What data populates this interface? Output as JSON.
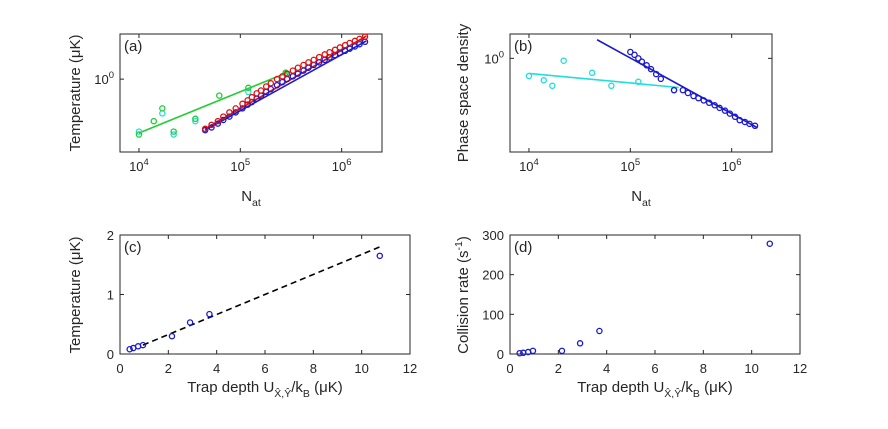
{
  "chart_data": [
    {
      "id": "a",
      "type": "scatter",
      "panel_label": "(a)",
      "xlabel": "N",
      "xlabel_sub": "at",
      "ylabel": "Temperature (μK)",
      "xscale": "log",
      "yscale": "log",
      "xlim": [
        6500,
        2500000
      ],
      "ylim": [
        0.28,
        2.2
      ],
      "xticks": [
        10000,
        100000,
        1000000
      ],
      "xticklabels": [
        {
          "base": "10",
          "exp": "4"
        },
        {
          "base": "10",
          "exp": "5"
        },
        {
          "base": "10",
          "exp": "6"
        }
      ],
      "yticks": [
        1
      ],
      "yticklabels": [
        {
          "base": "10",
          "exp": "0"
        }
      ],
      "series": [
        {
          "name": "cyan",
          "color": "#22dddd",
          "points": [
            [
              10000,
              0.4
            ],
            [
              17000,
              0.55
            ],
            [
              22000,
              0.38
            ],
            [
              36000,
              0.48
            ],
            [
              120000,
              0.8
            ],
            [
              280000,
              1.1
            ]
          ]
        },
        {
          "name": "green",
          "color": "#22cc33",
          "points": [
            [
              10000,
              0.38
            ],
            [
              14000,
              0.48
            ],
            [
              17000,
              0.6
            ],
            [
              22000,
              0.4
            ],
            [
              36000,
              0.5
            ],
            [
              62000,
              0.75
            ],
            [
              120000,
              0.86
            ],
            [
              280000,
              1.12
            ]
          ]
        },
        {
          "name": "blue",
          "color": "#1a1acc",
          "points": [
            [
              45000,
              0.41
            ],
            [
              52000,
              0.43
            ],
            [
              60000,
              0.46
            ],
            [
              68000,
              0.49
            ],
            [
              78000,
              0.52
            ],
            [
              90000,
              0.56
            ],
            [
              105000,
              0.6
            ],
            [
              118000,
              0.64
            ],
            [
              130000,
              0.67
            ],
            [
              145000,
              0.71
            ],
            [
              160000,
              0.75
            ],
            [
              180000,
              0.8
            ],
            [
              200000,
              0.84
            ],
            [
              230000,
              0.9
            ],
            [
              260000,
              0.95
            ],
            [
              290000,
              1.0
            ],
            [
              330000,
              1.05
            ],
            [
              370000,
              1.1
            ],
            [
              420000,
              1.16
            ],
            [
              470000,
              1.22
            ],
            [
              530000,
              1.28
            ],
            [
              600000,
              1.34
            ],
            [
              680000,
              1.4
            ],
            [
              760000,
              1.46
            ],
            [
              860000,
              1.52
            ],
            [
              960000,
              1.58
            ],
            [
              1080000,
              1.64
            ],
            [
              1200000,
              1.7
            ],
            [
              1350000,
              1.77
            ],
            [
              1500000,
              1.84
            ],
            [
              1700000,
              1.92
            ]
          ]
        },
        {
          "name": "red",
          "color": "#dd1111",
          "points": [
            [
              45000,
              0.42
            ],
            [
              52000,
              0.45
            ],
            [
              60000,
              0.48
            ],
            [
              68000,
              0.52
            ],
            [
              78000,
              0.56
            ],
            [
              90000,
              0.6
            ],
            [
              105000,
              0.65
            ],
            [
              118000,
              0.69
            ],
            [
              130000,
              0.73
            ],
            [
              145000,
              0.78
            ],
            [
              160000,
              0.82
            ],
            [
              180000,
              0.88
            ],
            [
              200000,
              0.93
            ],
            [
              230000,
              1.0
            ],
            [
              260000,
              1.05
            ],
            [
              290000,
              1.1
            ],
            [
              330000,
              1.16
            ],
            [
              370000,
              1.22
            ],
            [
              420000,
              1.28
            ],
            [
              470000,
              1.34
            ],
            [
              530000,
              1.4
            ],
            [
              600000,
              1.47
            ],
            [
              680000,
              1.54
            ],
            [
              760000,
              1.6
            ],
            [
              860000,
              1.67
            ],
            [
              960000,
              1.74
            ],
            [
              1080000,
              1.81
            ],
            [
              1200000,
              1.88
            ],
            [
              1350000,
              1.95
            ],
            [
              1500000,
              2.02
            ],
            [
              1700000,
              2.1
            ]
          ]
        }
      ],
      "fit_lines": [
        {
          "color": "#22cc33",
          "x": [
            10000,
            290000
          ],
          "y": [
            0.39,
            1.12
          ]
        },
        {
          "color": "#1a1acc",
          "x": [
            45000,
            1750000
          ],
          "y": [
            0.41,
            1.95
          ]
        },
        {
          "color": "#dd1111",
          "x": [
            45000,
            1750000
          ],
          "y": [
            0.42,
            2.12
          ]
        }
      ]
    },
    {
      "id": "b",
      "type": "scatter",
      "panel_label": "(b)",
      "xlabel": "N",
      "xlabel_sub": "at",
      "ylabel": "Phase space density",
      "xscale": "log",
      "yscale": "log",
      "xlim": [
        6500,
        2500000
      ],
      "ylim": [
        0.13,
        1.7
      ],
      "xticks": [
        10000,
        100000,
        1000000
      ],
      "xticklabels": [
        {
          "base": "10",
          "exp": "4"
        },
        {
          "base": "10",
          "exp": "5"
        },
        {
          "base": "10",
          "exp": "6"
        }
      ],
      "yticks": [
        1
      ],
      "yticklabels": [
        {
          "base": "10",
          "exp": "0"
        }
      ],
      "series": [
        {
          "name": "cyan",
          "color": "#22dddd",
          "points": [
            [
              10000,
              0.68
            ],
            [
              14000,
              0.62
            ],
            [
              17000,
              0.55
            ],
            [
              22000,
              0.95
            ],
            [
              42000,
              0.73
            ],
            [
              65000,
              0.55
            ],
            [
              120000,
              0.6
            ],
            [
              270000,
              0.5
            ]
          ]
        },
        {
          "name": "blue",
          "color": "#1a1acc",
          "points": [
            [
              100000,
              1.15
            ],
            [
              110000,
              1.08
            ],
            [
              120000,
              1.0
            ],
            [
              130000,
              0.93
            ],
            [
              145000,
              0.86
            ],
            [
              160000,
              0.79
            ],
            [
              180000,
              0.71
            ],
            [
              200000,
              0.64
            ],
            [
              270000,
              0.5
            ],
            [
              330000,
              0.5
            ],
            [
              370000,
              0.47
            ],
            [
              420000,
              0.44
            ],
            [
              470000,
              0.42
            ],
            [
              530000,
              0.4
            ],
            [
              600000,
              0.38
            ],
            [
              680000,
              0.36
            ],
            [
              760000,
              0.34
            ],
            [
              860000,
              0.32
            ],
            [
              960000,
              0.3
            ],
            [
              1080000,
              0.28
            ],
            [
              1200000,
              0.26
            ],
            [
              1350000,
              0.25
            ],
            [
              1500000,
              0.24
            ],
            [
              1700000,
              0.23
            ]
          ]
        }
      ],
      "fit_lines": [
        {
          "color": "#22dddd",
          "x": [
            10000,
            300000
          ],
          "y": [
            0.72,
            0.53
          ]
        },
        {
          "color": "#1a1acc",
          "x": [
            47000,
            1800000
          ],
          "y": [
            1.5,
            0.22
          ]
        }
      ]
    },
    {
      "id": "c",
      "type": "scatter",
      "panel_label": "(c)",
      "xlabel": "Trap depth U",
      "xlabel_sub": "X̂,Ŷ",
      "xlabel_tail": "/k",
      "xlabel_tail_sub": "B",
      "xlabel_unit": " (μK)",
      "ylabel": "Temperature (μK)",
      "xscale": "linear",
      "yscale": "linear",
      "xlim": [
        0,
        12
      ],
      "ylim": [
        0,
        2
      ],
      "xticks": [
        0,
        2,
        4,
        6,
        8,
        10,
        12
      ],
      "xticklabels": [
        "0",
        "2",
        "4",
        "6",
        "8",
        "10",
        "12"
      ],
      "yticks": [
        0,
        1,
        2
      ],
      "yticklabels": [
        "0",
        "1",
        "2"
      ],
      "series": [
        {
          "name": "data",
          "color": "#1a1acc",
          "points": [
            [
              0.4,
              0.08
            ],
            [
              0.55,
              0.1
            ],
            [
              0.75,
              0.13
            ],
            [
              0.95,
              0.15
            ],
            [
              2.15,
              0.3
            ],
            [
              2.9,
              0.53
            ],
            [
              3.7,
              0.67
            ],
            [
              10.75,
              1.65
            ]
          ]
        }
      ],
      "fit_lines": [
        {
          "color": "#000000",
          "dashed": true,
          "x": [
            0.95,
            10.75
          ],
          "y": [
            0.15,
            1.8
          ]
        }
      ]
    },
    {
      "id": "d",
      "type": "scatter",
      "panel_label": "(d)",
      "xlabel": "Trap depth U",
      "xlabel_sub": "X̂,Ŷ",
      "xlabel_tail": "/k",
      "xlabel_tail_sub": "B",
      "xlabel_unit": " (μK)",
      "ylabel": "Collision rate (s",
      "ylabel_sup": "-1",
      "ylabel_tail": ")",
      "xscale": "linear",
      "yscale": "linear",
      "xlim": [
        0,
        12
      ],
      "ylim": [
        0,
        300
      ],
      "xticks": [
        0,
        2,
        4,
        6,
        8,
        10,
        12
      ],
      "xticklabels": [
        "0",
        "2",
        "4",
        "6",
        "8",
        "10",
        "12"
      ],
      "yticks": [
        0,
        100,
        200,
        300
      ],
      "yticklabels": [
        "0",
        "100",
        "200",
        "300"
      ],
      "series": [
        {
          "name": "data",
          "color": "#1a1acc",
          "points": [
            [
              0.4,
              2
            ],
            [
              0.55,
              3
            ],
            [
              0.75,
              5
            ],
            [
              0.95,
              8
            ],
            [
              2.15,
              8
            ],
            [
              2.9,
              27
            ],
            [
              3.7,
              58
            ],
            [
              10.75,
              278
            ]
          ]
        }
      ],
      "fit_lines": []
    }
  ]
}
